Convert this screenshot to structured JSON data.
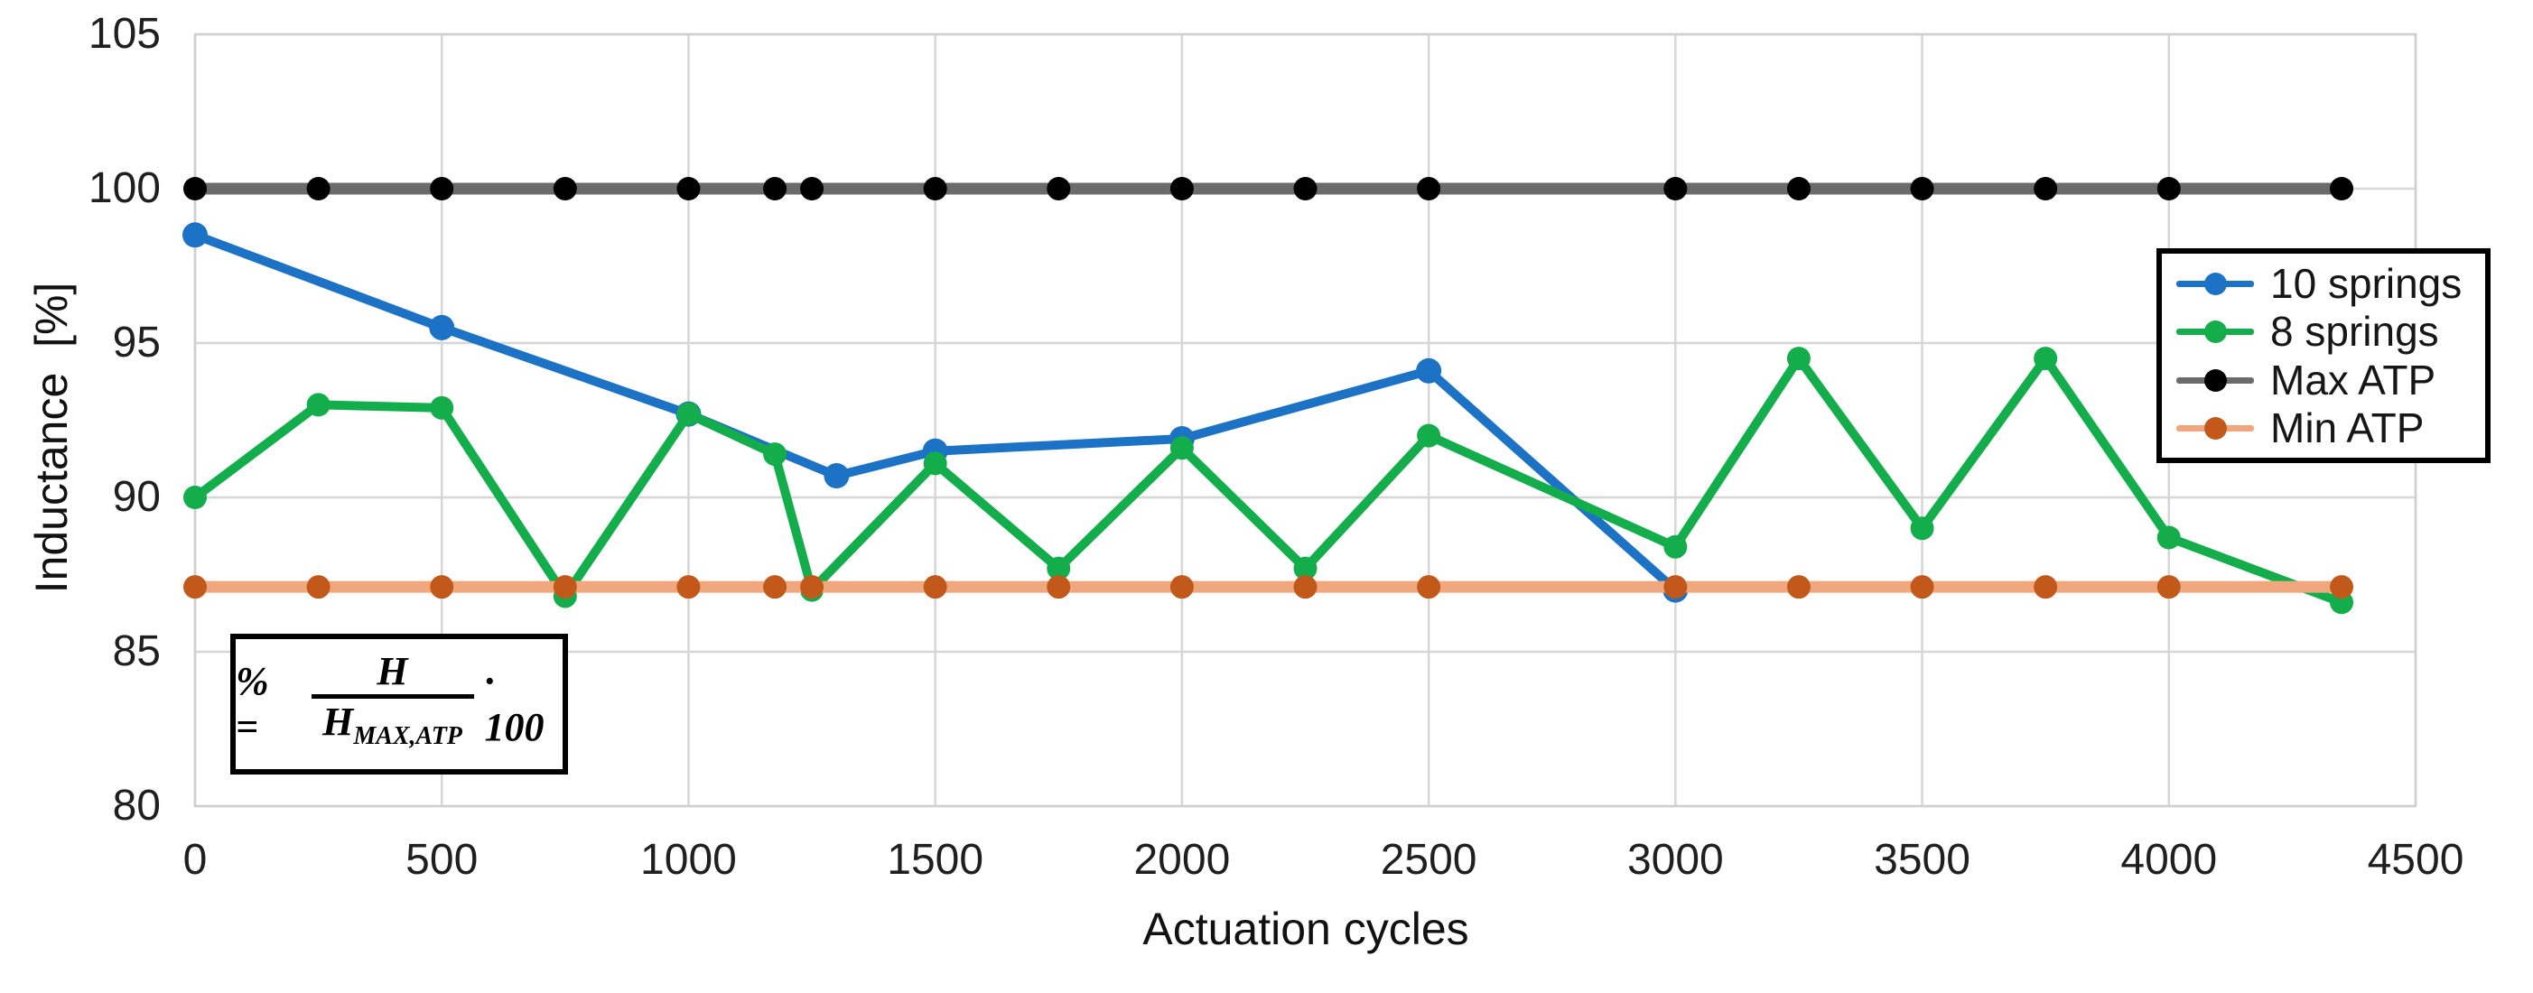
{
  "figure": {
    "background": "#ffffff"
  },
  "formula": {
    "lhs": "% =",
    "numerator": "H",
    "denominator_base": "H",
    "denominator_subscript": "MAX,ATP",
    "suffix": "· 100"
  },
  "colors": {
    "gridline": "#d6d6d6",
    "plot_border": "#cfcfcf",
    "tick_text": "#1f1f1f"
  },
  "chart_data": {
    "type": "line",
    "title": "",
    "xlabel": "Actuation cycles",
    "ylabel": "Inductance  [%]",
    "xlim": [
      0,
      4500
    ],
    "ylim": [
      80,
      105
    ],
    "x_ticks": [
      0,
      500,
      1000,
      1500,
      2000,
      2500,
      3000,
      3500,
      4000,
      4500
    ],
    "y_ticks": [
      80,
      85,
      90,
      95,
      100,
      105
    ],
    "grid": true,
    "legend_position": "right-inside",
    "series": [
      {
        "name": "10 springs",
        "color": "#1c72c4",
        "marker_color": "#1c72c4",
        "line_width": 10,
        "marker_radius": 14,
        "points": [
          [
            0,
            98.5
          ],
          [
            500,
            95.5
          ],
          [
            1000,
            92.7
          ],
          [
            1300,
            90.7
          ],
          [
            1500,
            91.5
          ],
          [
            2000,
            91.9
          ],
          [
            2500,
            94.1
          ],
          [
            3000,
            87.0
          ]
        ]
      },
      {
        "name": "8 springs",
        "color": "#13ae4b",
        "marker_color": "#13ae4b",
        "line_width": 10,
        "marker_radius": 13,
        "points": [
          [
            0,
            90.0
          ],
          [
            250,
            93.0
          ],
          [
            500,
            92.9
          ],
          [
            750,
            86.8
          ],
          [
            1000,
            92.7
          ],
          [
            1175,
            91.4
          ],
          [
            1250,
            87.0
          ],
          [
            1500,
            91.1
          ],
          [
            1750,
            87.7
          ],
          [
            2000,
            91.6
          ],
          [
            2250,
            87.7
          ],
          [
            2500,
            92.0
          ],
          [
            3000,
            88.4
          ],
          [
            3250,
            94.5
          ],
          [
            3500,
            89.0
          ],
          [
            3750,
            94.5
          ],
          [
            4000,
            88.7
          ],
          [
            4350,
            86.6
          ]
        ]
      },
      {
        "name": "Max ATP",
        "color": "#6b6b6b",
        "marker_color": "#000000",
        "line_width": 13,
        "marker_radius": 13,
        "points": [
          [
            0,
            100
          ],
          [
            250,
            100
          ],
          [
            500,
            100
          ],
          [
            750,
            100
          ],
          [
            1000,
            100
          ],
          [
            1175,
            100
          ],
          [
            1250,
            100
          ],
          [
            1500,
            100
          ],
          [
            1750,
            100
          ],
          [
            2000,
            100
          ],
          [
            2250,
            100
          ],
          [
            2500,
            100
          ],
          [
            3000,
            100
          ],
          [
            3250,
            100
          ],
          [
            3500,
            100
          ],
          [
            3750,
            100
          ],
          [
            4000,
            100
          ],
          [
            4350,
            100
          ]
        ]
      },
      {
        "name": "Min ATP",
        "color": "#f0a77d",
        "marker_color": "#c2591a",
        "line_width": 13,
        "marker_radius": 13,
        "points": [
          [
            0,
            87.1
          ],
          [
            250,
            87.1
          ],
          [
            500,
            87.1
          ],
          [
            750,
            87.1
          ],
          [
            1000,
            87.1
          ],
          [
            1175,
            87.1
          ],
          [
            1250,
            87.1
          ],
          [
            1500,
            87.1
          ],
          [
            1750,
            87.1
          ],
          [
            2000,
            87.1
          ],
          [
            2250,
            87.1
          ],
          [
            2500,
            87.1
          ],
          [
            3000,
            87.1
          ],
          [
            3250,
            87.1
          ],
          [
            3500,
            87.1
          ],
          [
            3750,
            87.1
          ],
          [
            4000,
            87.1
          ],
          [
            4350,
            87.1
          ]
        ]
      }
    ]
  }
}
